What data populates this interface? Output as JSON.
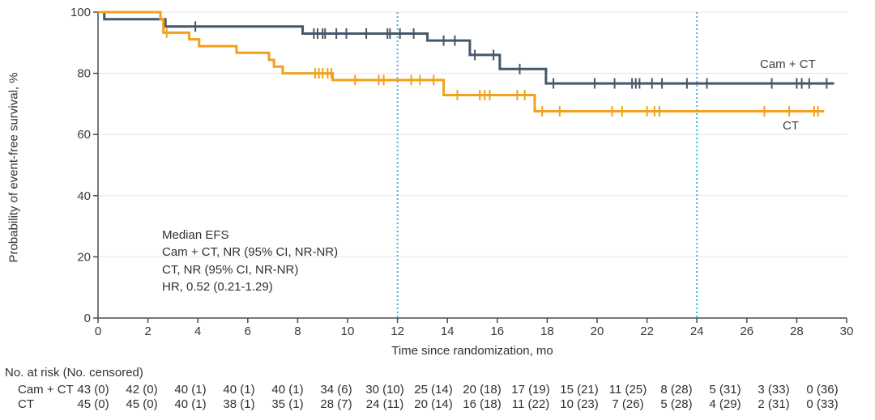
{
  "chart_data": {
    "type": "line",
    "subtype": "kaplan-meier-step",
    "title": "",
    "xlabel": "Time since randomization, mo",
    "ylabel": "Probability of event-free survival, %",
    "xlim": [
      0,
      30
    ],
    "ylim": [
      0,
      100
    ],
    "x_ticks": [
      0,
      2,
      4,
      6,
      8,
      10,
      12,
      14,
      16,
      18,
      20,
      22,
      24,
      26,
      28,
      30
    ],
    "y_ticks": [
      0,
      20,
      40,
      60,
      80,
      100
    ],
    "grid": "horizontal",
    "reference_lines_x": [
      12,
      24
    ],
    "colors": {
      "cam_ct": "#44586A",
      "ct": "#F1A11B",
      "reference_line": "#3FB5E8",
      "gridline": "#e9e9e6",
      "axis": "#4b4b4b",
      "text": "#303030"
    },
    "annotation": {
      "lines": [
        "Median EFS",
        "Cam + CT, NR (95% CI, NR-NR)",
        "CT, NR (95% CI, NR-NR)",
        "HR, 0.52 (0.21-1.29)"
      ]
    },
    "series": [
      {
        "name": "cam-ct",
        "label": "Cam + CT",
        "color": "#44586A",
        "steps": [
          [
            0,
            100
          ],
          [
            0.25,
            97.7
          ],
          [
            2.7,
            95.3
          ],
          [
            8.2,
            93.0
          ],
          [
            13.2,
            90.7
          ],
          [
            14.9,
            86.0
          ],
          [
            16.1,
            81.4
          ],
          [
            17.95,
            76.7
          ]
        ],
        "end_t": 29.5,
        "censors": [
          [
            3.9,
            95.3
          ],
          [
            8.65,
            93.0
          ],
          [
            8.8,
            93.0
          ],
          [
            9.0,
            93.0
          ],
          [
            9.1,
            93.0
          ],
          [
            9.55,
            93.0
          ],
          [
            9.95,
            93.0
          ],
          [
            10.75,
            93.0
          ],
          [
            11.6,
            93.0
          ],
          [
            11.7,
            93.0
          ],
          [
            12.1,
            93.0
          ],
          [
            12.65,
            93.0
          ],
          [
            13.85,
            90.7
          ],
          [
            14.3,
            90.7
          ],
          [
            15.1,
            86.0
          ],
          [
            15.85,
            86.0
          ],
          [
            16.9,
            81.4
          ],
          [
            18.25,
            76.7
          ],
          [
            19.9,
            76.7
          ],
          [
            20.7,
            76.7
          ],
          [
            21.4,
            76.7
          ],
          [
            21.55,
            76.7
          ],
          [
            21.7,
            76.7
          ],
          [
            22.2,
            76.7
          ],
          [
            22.6,
            76.7
          ],
          [
            23.6,
            76.7
          ],
          [
            24.4,
            76.7
          ],
          [
            27.0,
            76.7
          ],
          [
            28.0,
            76.7
          ],
          [
            28.2,
            76.7
          ],
          [
            28.5,
            76.7
          ],
          [
            29.2,
            76.7
          ]
        ]
      },
      {
        "name": "ct",
        "label": "CT",
        "color": "#F1A11B",
        "steps": [
          [
            0,
            100
          ],
          [
            2.5,
            97.8
          ],
          [
            2.62,
            93.3
          ],
          [
            3.65,
            91.1
          ],
          [
            4.05,
            88.9
          ],
          [
            5.55,
            86.7
          ],
          [
            6.85,
            84.4
          ],
          [
            7.05,
            82.2
          ],
          [
            7.4,
            80.0
          ],
          [
            9.4,
            77.8
          ],
          [
            13.85,
            72.9
          ],
          [
            17.5,
            67.6
          ]
        ],
        "end_t": 29.1,
        "censors": [
          [
            2.75,
            93.3
          ],
          [
            8.7,
            80.0
          ],
          [
            8.85,
            80.0
          ],
          [
            9.0,
            80.0
          ],
          [
            9.2,
            80.0
          ],
          [
            9.35,
            80.0
          ],
          [
            10.3,
            77.8
          ],
          [
            11.25,
            77.8
          ],
          [
            11.45,
            77.8
          ],
          [
            12.55,
            77.8
          ],
          [
            12.9,
            77.8
          ],
          [
            13.45,
            77.8
          ],
          [
            14.4,
            72.9
          ],
          [
            15.3,
            72.9
          ],
          [
            15.5,
            72.9
          ],
          [
            15.7,
            72.9
          ],
          [
            16.8,
            72.9
          ],
          [
            17.1,
            72.9
          ],
          [
            17.8,
            67.6
          ],
          [
            18.5,
            67.6
          ],
          [
            20.6,
            67.6
          ],
          [
            21.0,
            67.6
          ],
          [
            22.0,
            67.6
          ],
          [
            22.3,
            67.6
          ],
          [
            22.5,
            67.6
          ],
          [
            26.7,
            67.6
          ],
          [
            27.7,
            67.6
          ],
          [
            28.7,
            67.6
          ],
          [
            28.85,
            67.6
          ]
        ]
      }
    ],
    "risk_table": {
      "header": "No. at risk (No. censored)",
      "time_points": [
        0,
        2,
        4,
        6,
        8,
        10,
        12,
        14,
        16,
        18,
        20,
        22,
        24,
        26,
        28,
        30
      ],
      "rows": [
        {
          "label": "Cam + CT",
          "values": [
            "43 (0)",
            "42 (0)",
            "40 (1)",
            "40 (1)",
            "40 (1)",
            "34 (6)",
            "30 (10)",
            "25 (14)",
            "20 (18)",
            "17 (19)",
            "15 (21)",
            "11 (25)",
            "8 (28)",
            "5 (31)",
            "3 (33)",
            "0 (36)"
          ]
        },
        {
          "label": "CT",
          "values": [
            "45 (0)",
            "45 (0)",
            "40 (1)",
            "38 (1)",
            "35 (1)",
            "28 (7)",
            "24 (11)",
            "20 (14)",
            "16 (18)",
            "11 (22)",
            "10 (23)",
            "7 (26)",
            "5 (28)",
            "4 (29)",
            "2 (31)",
            "0 (33)"
          ]
        }
      ]
    }
  }
}
